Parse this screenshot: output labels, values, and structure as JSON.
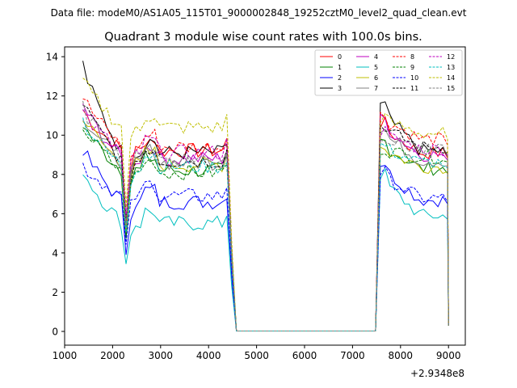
{
  "header": {
    "data_file_prefix": "Data file: ",
    "data_file_name": "modeM0/AS1A05_115T01_9000002848_19252cztM0_level2_quad_clean.evt"
  },
  "chart_data": {
    "type": "line",
    "title": "Quadrant 3 module wise count rates with 100.0s bins.",
    "xlabel": "",
    "ylabel": "",
    "x_offset_label": "+2.9348e8",
    "xlim": [
      1000,
      9350
    ],
    "ylim": [
      -0.7,
      14.5
    ],
    "xticks": [
      1000,
      2000,
      3000,
      4000,
      5000,
      6000,
      7000,
      8000,
      9000
    ],
    "yticks": [
      0,
      2,
      4,
      6,
      8,
      10,
      12,
      14
    ],
    "legend_position": "top-right",
    "segments": [
      {
        "x_start": 1380,
        "x_end": 4580,
        "step": 100
      },
      {
        "x_start": 4580,
        "x_end": 7480,
        "step": 100
      },
      {
        "x_start": 7480,
        "x_end": 8980,
        "step": 100
      }
    ],
    "gap_value": 0.02,
    "series": [
      {
        "name": "0",
        "color": "#ff0000",
        "dash": "solid",
        "seg1_level": 9.2,
        "seg1_start": 11.3,
        "seg2_level": 9.1,
        "seg2_start": 10.6,
        "end_value": 0.3
      },
      {
        "name": "1",
        "color": "#008000",
        "dash": "solid",
        "seg1_level": 8.2,
        "seg1_start": 10.6,
        "seg2_level": 8.3,
        "seg2_start": 9.7,
        "end_value": 0.3
      },
      {
        "name": "2",
        "color": "#0000ff",
        "dash": "solid",
        "seg1_level": 6.6,
        "seg1_start": 9.3,
        "seg2_level": 6.7,
        "seg2_start": 8.6,
        "end_value": 0.3
      },
      {
        "name": "3",
        "color": "#000000",
        "dash": "solid",
        "seg1_level": 9.1,
        "seg1_start": 13.6,
        "seg2_level": 9.2,
        "seg2_start": 11.5,
        "end_value": 0.3
      },
      {
        "name": "4",
        "color": "#bf00bf",
        "dash": "solid",
        "seg1_level": 8.8,
        "seg1_start": 11.6,
        "seg2_level": 9.0,
        "seg2_start": 10.8,
        "end_value": 0.3
      },
      {
        "name": "5",
        "color": "#00bfbf",
        "dash": "solid",
        "seg1_level": 5.5,
        "seg1_start": 8.3,
        "seg2_level": 5.9,
        "seg2_start": 8.0,
        "end_value": 0.3
      },
      {
        "name": "6",
        "color": "#bfbf00",
        "dash": "solid",
        "seg1_level": 8.5,
        "seg1_start": 11.0,
        "seg2_level": 8.4,
        "seg2_start": 9.4,
        "end_value": 0.3
      },
      {
        "name": "7",
        "color": "#808080",
        "dash": "solid",
        "seg1_level": 8.6,
        "seg1_start": 11.1,
        "seg2_level": 8.7,
        "seg2_start": 10.3,
        "end_value": 0.3
      },
      {
        "name": "8",
        "color": "#ff0000",
        "dash": "dashed",
        "seg1_level": 9.4,
        "seg1_start": 12.0,
        "seg2_level": 9.8,
        "seg2_start": 11.0,
        "end_value": 0.3
      },
      {
        "name": "9",
        "color": "#008000",
        "dash": "dashed",
        "seg1_level": 8.1,
        "seg1_start": 10.5,
        "seg2_level": 8.9,
        "seg2_start": 9.3,
        "end_value": 0.3
      },
      {
        "name": "10",
        "color": "#0000ff",
        "dash": "dashed",
        "seg1_level": 6.9,
        "seg1_start": 8.5,
        "seg2_level": 6.8,
        "seg2_start": 8.1,
        "end_value": 0.3
      },
      {
        "name": "11",
        "color": "#000000",
        "dash": "dashed",
        "seg1_level": 8.7,
        "seg1_start": 11.7,
        "seg2_level": 9.4,
        "seg2_start": 10.5,
        "end_value": 0.3
      },
      {
        "name": "12",
        "color": "#bf00bf",
        "dash": "dashed",
        "seg1_level": 9.1,
        "seg1_start": 11.2,
        "seg2_level": 9.3,
        "seg2_start": 10.2,
        "end_value": 0.3
      },
      {
        "name": "13",
        "color": "#00bfbf",
        "dash": "dashed",
        "seg1_level": 8.4,
        "seg1_start": 10.8,
        "seg2_level": 8.6,
        "seg2_start": 9.5,
        "end_value": 0.3
      },
      {
        "name": "14",
        "color": "#bfbf00",
        "dash": "dashed",
        "seg1_level": 10.4,
        "seg1_start": 12.8,
        "seg2_level": 10.1,
        "seg2_start": 10.9,
        "end_value": 0.3
      },
      {
        "name": "15",
        "color": "#808080",
        "dash": "dashed",
        "seg1_level": 8.8,
        "seg1_start": 11.4,
        "seg2_level": 9.2,
        "seg2_start": 10.0,
        "end_value": 0.3
      }
    ]
  }
}
